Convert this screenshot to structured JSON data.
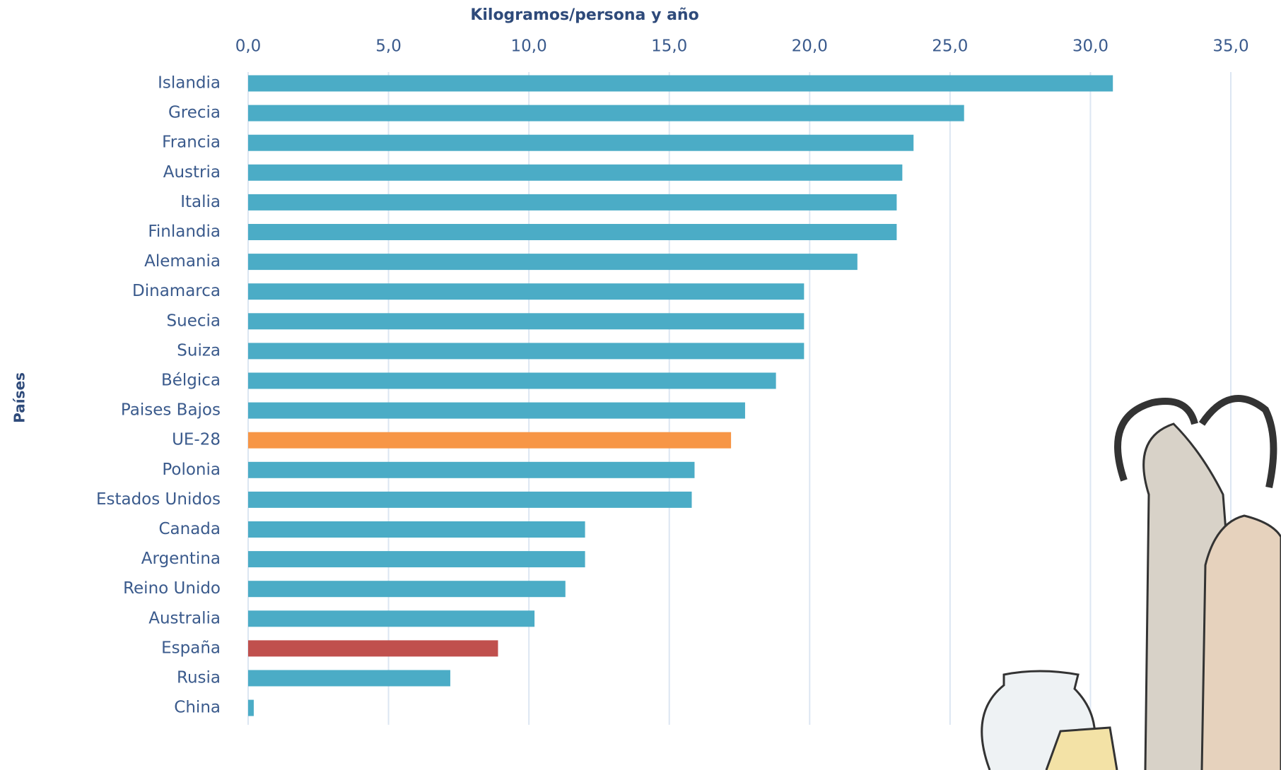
{
  "chart_data": {
    "type": "barh",
    "title": "Kilogramos/persona y año",
    "y_label": "Países",
    "categories": [
      "Islandia",
      "Grecia",
      "Francia",
      "Austria",
      "Italia",
      "Finlandia",
      "Alemania",
      "Dinamarca",
      "Suecia",
      "Suiza",
      "Bélgica",
      "Paises Bajos",
      "UE-28",
      "Polonia",
      "Estados Unidos",
      "Canada",
      "Argentina",
      "Reino Unido",
      "Australia",
      "España",
      "Rusia",
      "China"
    ],
    "values": [
      30.8,
      25.5,
      23.7,
      23.3,
      23.1,
      23.1,
      21.7,
      19.8,
      19.8,
      19.8,
      18.8,
      17.7,
      17.2,
      15.9,
      15.8,
      12.0,
      12.0,
      11.3,
      10.2,
      8.9,
      7.2,
      0.2
    ],
    "colors": [
      "#4bacc6",
      "#4bacc6",
      "#4bacc6",
      "#4bacc6",
      "#4bacc6",
      "#4bacc6",
      "#4bacc6",
      "#4bacc6",
      "#4bacc6",
      "#4bacc6",
      "#4bacc6",
      "#4bacc6",
      "#f79646",
      "#4bacc6",
      "#4bacc6",
      "#4bacc6",
      "#4bacc6",
      "#4bacc6",
      "#4bacc6",
      "#c0504d",
      "#4bacc6",
      "#4bacc6"
    ],
    "xlim": [
      0,
      35
    ],
    "xticks": [
      {
        "value": 0,
        "label": "0,0"
      },
      {
        "value": 5,
        "label": "5,0"
      },
      {
        "value": 10,
        "label": "10,0"
      },
      {
        "value": 15,
        "label": "15,0"
      },
      {
        "value": 20,
        "label": "20,0"
      },
      {
        "value": 25,
        "label": "25,0"
      },
      {
        "value": 30,
        "label": "30,0"
      },
      {
        "value": 35,
        "label": "35,0"
      }
    ],
    "grid": true
  }
}
